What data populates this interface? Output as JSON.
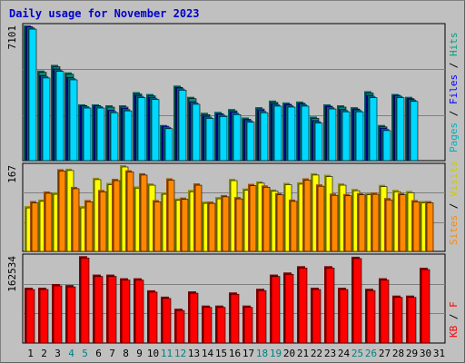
{
  "title": "Daily usage for November 2023",
  "colors": {
    "frame_bg": "#c0c0c0",
    "title": "#0000cc",
    "hits": "#00b0c0",
    "files": "#0000ff",
    "pages": "#00b0c0",
    "visits": "#e0e000",
    "sites": "#ff8800",
    "kbytes": "#ff0000",
    "weekend_label": "#008080",
    "weekday_label": "#000000",
    "grid": "#808080"
  },
  "chart_data": [
    {
      "type": "bar",
      "name": "hits_files_pages",
      "categories": [
        "1",
        "2",
        "3",
        "4",
        "5",
        "6",
        "7",
        "8",
        "9",
        "10",
        "11",
        "12",
        "13",
        "14",
        "15",
        "16",
        "17",
        "18",
        "19",
        "20",
        "21",
        "22",
        "23",
        "24",
        "25",
        "26",
        "27",
        "28",
        "29",
        "30",
        "31"
      ],
      "ymax_label": "7101",
      "ylim": [
        0,
        7101
      ],
      "side_label_parts": [
        "Pages",
        "Files",
        "Hits"
      ],
      "series": [
        {
          "name": "Hits",
          "values": [
            7100,
            4700,
            5000,
            4600,
            2900,
            2900,
            2850,
            2850,
            3550,
            3450,
            1800,
            3900,
            3300,
            2450,
            2500,
            2650,
            2200,
            2750,
            3100,
            3000,
            3050,
            2250,
            2900,
            2850,
            2750,
            3600,
            1800,
            3450,
            3300,
            0,
            0
          ]
        },
        {
          "name": "Files",
          "values": [
            7050,
            4450,
            4800,
            4350,
            2850,
            2850,
            2600,
            2700,
            3400,
            3300,
            1750,
            3800,
            3050,
            2300,
            2400,
            2500,
            2100,
            2600,
            2950,
            2900,
            2950,
            2050,
            2800,
            2650,
            2650,
            3400,
            1650,
            3400,
            3200,
            0,
            0
          ]
        },
        {
          "name": "Pages",
          "values": [
            7000,
            4400,
            4750,
            4300,
            2800,
            2800,
            2550,
            2650,
            3350,
            3250,
            1700,
            3750,
            3000,
            2250,
            2350,
            2450,
            2050,
            2550,
            2900,
            2850,
            2900,
            2000,
            2750,
            2600,
            2600,
            3350,
            1600,
            3350,
            3150,
            0,
            0
          ]
        }
      ]
    },
    {
      "type": "bar",
      "name": "visits_sites",
      "ymax_label": "167",
      "ylim": [
        0,
        167
      ],
      "side_label_parts": [
        "Sites",
        "Visits"
      ],
      "series": [
        {
          "name": "Visits",
          "values": [
            86,
            99,
            113,
            160,
            86,
            142,
            132,
            167,
            125,
            131,
            113,
            101,
            118,
            95,
            104,
            140,
            121,
            135,
            119,
            132,
            133,
            151,
            148,
            131,
            120,
            112,
            128,
            118,
            116,
            96,
            0
          ]
        },
        {
          "name": "Sites",
          "values": [
            96,
            115,
            159,
            124,
            98,
            118,
            140,
            157,
            151,
            98,
            141,
            103,
            131,
            95,
            108,
            104,
            130,
            127,
            112,
            99,
            141,
            129,
            111,
            110,
            112,
            113,
            102,
            112,
            98,
            96,
            0
          ]
        }
      ]
    },
    {
      "type": "bar",
      "name": "kbytes",
      "ymax_label": "162534",
      "ylim": [
        0,
        162534
      ],
      "side_label_parts": [
        "KB",
        "F"
      ],
      "series": [
        {
          "name": "KBytes",
          "values": [
            102000,
            102000,
            109000,
            107000,
            162000,
            127000,
            127000,
            120000,
            120000,
            97000,
            85000,
            62000,
            95000,
            68000,
            68000,
            93000,
            68000,
            100000,
            127000,
            131000,
            143000,
            102000,
            143000,
            102000,
            161000,
            100000,
            120000,
            87000,
            87000,
            140000,
            0
          ]
        }
      ]
    }
  ],
  "x_labels": [
    "1",
    "2",
    "3",
    "4",
    "5",
    "6",
    "7",
    "8",
    "9",
    "10",
    "11",
    "12",
    "13",
    "14",
    "15",
    "16",
    "17",
    "18",
    "19",
    "20",
    "21",
    "22",
    "23",
    "24",
    "25",
    "26",
    "27",
    "28",
    "29",
    "30",
    "31"
  ],
  "weekend_days": [
    "4",
    "5",
    "11",
    "12",
    "18",
    "19",
    "25",
    "26"
  ]
}
